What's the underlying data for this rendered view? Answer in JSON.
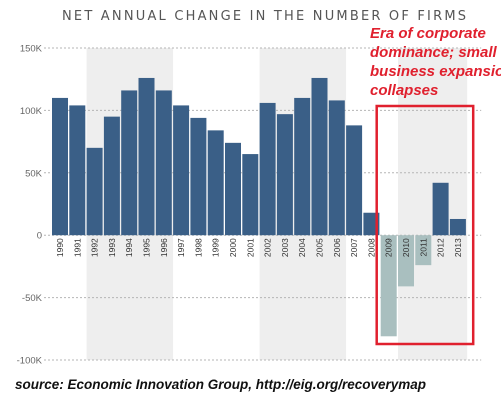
{
  "chart_data": {
    "type": "bar",
    "title": "NET ANNUAL CHANGE IN THE NUMBER OF FIRMS",
    "xlabel": "",
    "ylabel": "",
    "ylim": [
      -100000,
      150000
    ],
    "yticks": [
      150000,
      100000,
      50000,
      0,
      -50000,
      -100000
    ],
    "ytick_labels": [
      "150K",
      "100K",
      "50K",
      "0",
      "-50K",
      "-100K"
    ],
    "grid": true,
    "categories": [
      "1990",
      "1991",
      "1992",
      "1993",
      "1994",
      "1995",
      "1996",
      "1997",
      "1998",
      "1999",
      "2000",
      "2001",
      "2002",
      "2003",
      "2004",
      "2005",
      "2006",
      "2007",
      "2008",
      "2009",
      "2010",
      "2011",
      "2012",
      "2013"
    ],
    "values": [
      110000,
      104000,
      70000,
      95000,
      116000,
      126000,
      116000,
      104000,
      94000,
      84000,
      74000,
      65000,
      106000,
      97000,
      110000,
      126000,
      108000,
      88000,
      18000,
      -81000,
      -41000,
      -24000,
      42000,
      13000
    ],
    "bar_colors": {
      "positive": "#3a5f87",
      "recession_negative": "#a9bfbf"
    },
    "shaded_bands": [
      [
        "1992",
        "1996"
      ],
      [
        "2002",
        "2006"
      ],
      [
        "2010",
        "2013"
      ]
    ],
    "band_color": "#eeeeee",
    "annotation": {
      "lines": [
        "Era of corporate",
        "dominance; small",
        "business expansion",
        "collapses"
      ],
      "box_years": [
        "2009",
        "2013"
      ],
      "color": "#e0202e"
    },
    "source": "source: Economic Innovation Group, http://eig.org/recoverymap"
  }
}
